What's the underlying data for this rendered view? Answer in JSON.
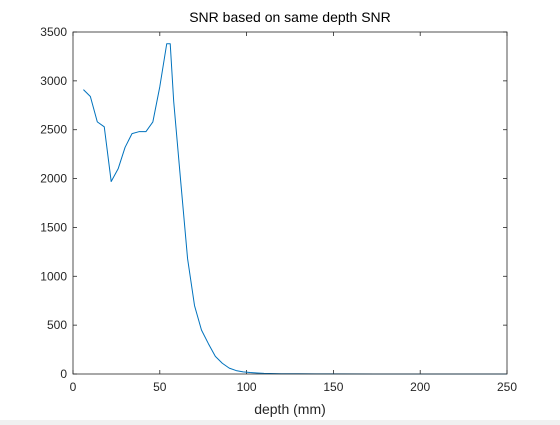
{
  "chart_data": {
    "type": "line",
    "title": "SNR based on same depth SNR",
    "xlabel": "depth (mm)",
    "ylabel": "",
    "xlim": [
      0,
      250
    ],
    "ylim": [
      0,
      3500
    ],
    "xticks": [
      0,
      50,
      100,
      150,
      200,
      250
    ],
    "yticks": [
      0,
      500,
      1000,
      1500,
      2000,
      2500,
      3000,
      3500
    ],
    "xtick_labels": [
      "0",
      "50",
      "100",
      "150",
      "200",
      "250"
    ],
    "ytick_labels": [
      "0",
      "500",
      "1000",
      "1500",
      "2000",
      "2500",
      "3000",
      "3500"
    ],
    "grid": false,
    "box": true,
    "series": [
      {
        "color": "#0072bd",
        "x": [
          6,
          10,
          14,
          18,
          22,
          26,
          30,
          34,
          38,
          42,
          46,
          50,
          54,
          56,
          58,
          62,
          66,
          70,
          74,
          78,
          82,
          86,
          90,
          94,
          98,
          102,
          106,
          110,
          120,
          130,
          140,
          150,
          175,
          200,
          225,
          250
        ],
        "y": [
          2910,
          2840,
          2580,
          2530,
          1970,
          2100,
          2320,
          2460,
          2480,
          2480,
          2580,
          2940,
          3380,
          3380,
          2790,
          1980,
          1180,
          700,
          450,
          310,
          180,
          110,
          60,
          35,
          22,
          15,
          10,
          6,
          3,
          2,
          1,
          1,
          0,
          0,
          0,
          0
        ]
      }
    ]
  }
}
